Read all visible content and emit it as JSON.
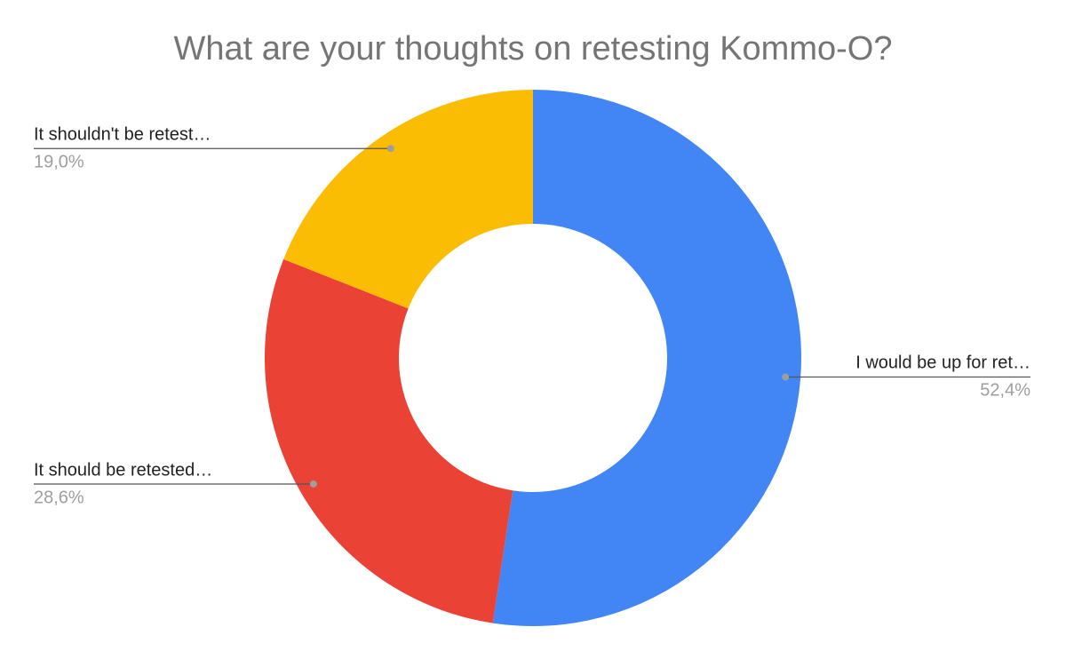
{
  "chart_data": {
    "type": "pie",
    "title": "What are your thoughts on retesting Kommo-O?",
    "categories": [
      "I would be up for ret…",
      "It should be retested…",
      "It shouldn't be retest…"
    ],
    "values": [
      52.4,
      28.6,
      19.0
    ],
    "value_labels": [
      "52,4%",
      "28,6%",
      "19,0%"
    ],
    "colors": [
      "#4285f4",
      "#ea4335",
      "#fbbc04"
    ],
    "donut": true
  }
}
